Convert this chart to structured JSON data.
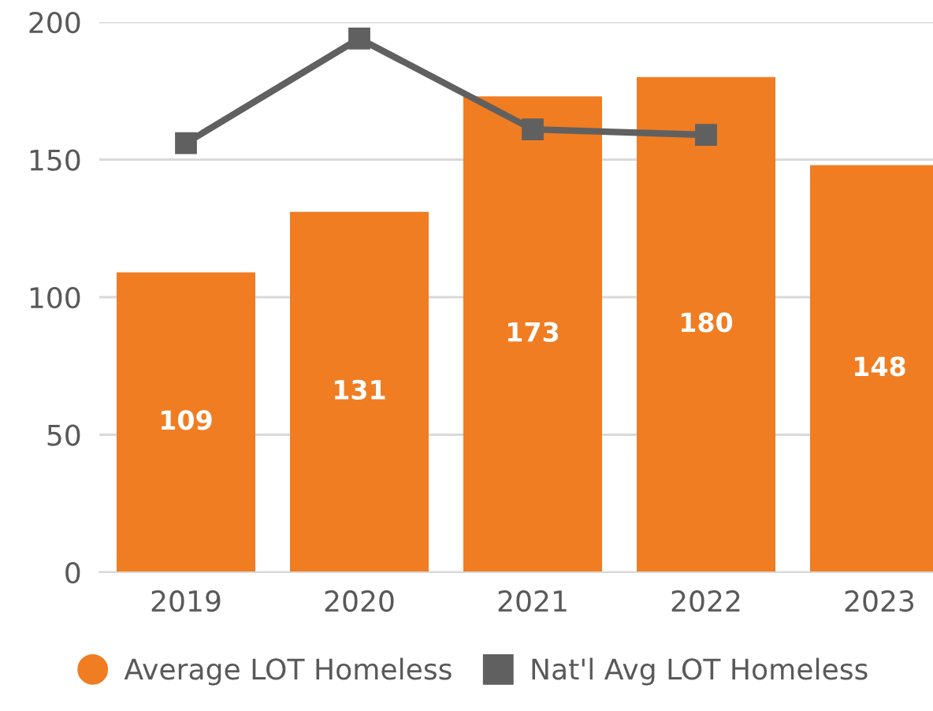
{
  "chart_data": {
    "type": "bar",
    "categories": [
      "2019",
      "2020",
      "2021",
      "2022",
      "2023"
    ],
    "series": [
      {
        "name": "Average LOT Homeless",
        "color": "#f07d22",
        "values": [
          109,
          131,
          173,
          180,
          148
        ],
        "value_labels": [
          "109",
          "131",
          "173",
          "180",
          "148"
        ]
      },
      {
        "name": "Nat'l Avg LOT Homeless",
        "color": "#606060",
        "type": "line",
        "marker": "square",
        "values": [
          156,
          194,
          161,
          159,
          null
        ]
      }
    ],
    "ylim": [
      0,
      200
    ],
    "yticks": [
      0,
      50,
      100,
      150,
      200
    ],
    "grid": "y",
    "legend": "bottom"
  }
}
